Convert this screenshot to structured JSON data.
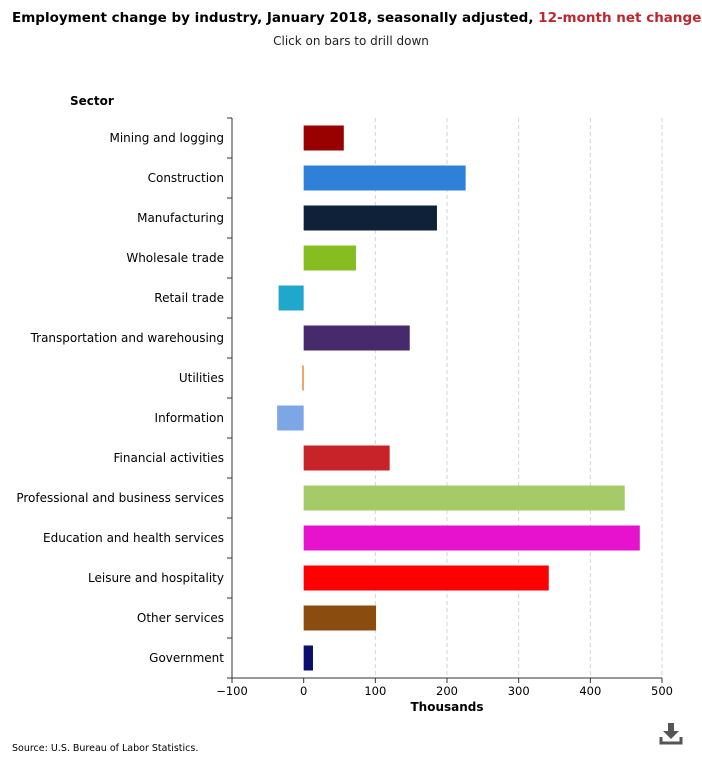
{
  "title": {
    "main": "Employment change by industry, January 2018, seasonally adjusted,",
    "highlight": "12-month net change"
  },
  "subtitle": "Click on bars to drill down",
  "source": "Source: U.S. Bureau of Labor Statistics.",
  "download_icon": "download-icon",
  "chart_data": {
    "type": "bar",
    "orientation": "horizontal",
    "ylabel": "Sector",
    "xlabel": "Thousands",
    "xlim": [
      -100,
      500
    ],
    "xticks": [
      -100,
      0,
      100,
      200,
      300,
      400,
      500
    ],
    "grid": "vertical dashed",
    "categories": [
      "Mining and logging",
      "Construction",
      "Manufacturing",
      "Wholesale trade",
      "Retail trade",
      "Transportation and warehousing",
      "Utilities",
      "Information",
      "Financial activities",
      "Professional and business services",
      "Education and health services",
      "Leisure and hospitality",
      "Other services",
      "Government"
    ],
    "values": [
      56,
      226,
      186,
      73,
      -35,
      148,
      -2,
      -37,
      120,
      448,
      469,
      342,
      101,
      13
    ],
    "colors": [
      "#990000",
      "#2f80d8",
      "#0e2138",
      "#86be22",
      "#1fa7cc",
      "#472a6b",
      "#e58a3c",
      "#7da6e6",
      "#c9232a",
      "#a5cb68",
      "#e612cd",
      "#ff0000",
      "#8b4c10",
      "#0b0e6e"
    ]
  }
}
